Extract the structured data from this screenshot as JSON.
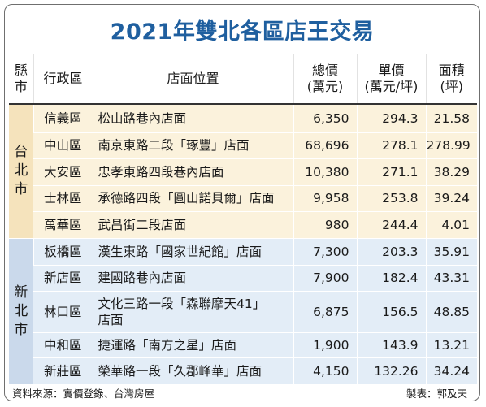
{
  "title": "2021年雙北各區店王交易",
  "headers": {
    "city": "縣市",
    "district": "行政區",
    "location": "店面位置",
    "total": "總價",
    "total_unit": "(萬元)",
    "unit_price": "單價",
    "unit_price_unit": "(萬元/坪)",
    "area": "面積",
    "area_unit": "(坪)"
  },
  "groups": [
    {
      "city": "台北市"
    },
    {
      "city": "新北市"
    }
  ],
  "rows": [
    {
      "district": "信義區",
      "location": "松山路巷內店面",
      "total": "6,350",
      "unit_price": "294.3",
      "area": "21.58"
    },
    {
      "district": "中山區",
      "location": "南京東路二段「琢豐」店面",
      "total": "68,696",
      "unit_price": "278.1",
      "area": "278.99"
    },
    {
      "district": "大安區",
      "location": "忠孝東路四段巷內店面",
      "total": "10,380",
      "unit_price": "271.1",
      "area": "38.29"
    },
    {
      "district": "士林區",
      "location": "承德路四段「圓山諾貝爾」店面",
      "total": "9,958",
      "unit_price": "253.8",
      "area": "39.24"
    },
    {
      "district": "萬華區",
      "location": "武昌街二段店面",
      "total": "980",
      "unit_price": "244.4",
      "area": "4.01"
    },
    {
      "district": "板橋區",
      "location": "漢生東路「國家世紀館」店面",
      "total": "7,300",
      "unit_price": "203.3",
      "area": "35.91"
    },
    {
      "district": "新店區",
      "location": "建國路巷內店面",
      "total": "7,900",
      "unit_price": "182.4",
      "area": "43.31"
    },
    {
      "district": "林口區",
      "location": "文化三路一段「森聯摩天41」",
      "location2": "店面",
      "total": "6,875",
      "unit_price": "156.5",
      "area": "48.85"
    },
    {
      "district": "中和區",
      "location": "捷運路「南方之星」店面",
      "total": "1,900",
      "unit_price": "143.9",
      "area": "13.21"
    },
    {
      "district": "新莊區",
      "location": "榮華路一段「久郡峰華」店面",
      "total": "4,150",
      "unit_price": "132.26",
      "area": "34.24"
    }
  ],
  "chart_data": {
    "type": "table",
    "title": "2021年雙北各區店王交易",
    "columns": [
      "縣市",
      "行政區",
      "店面位置",
      "總價(萬元)",
      "單價(萬元/坪)",
      "面積(坪)"
    ],
    "rows": [
      [
        "台北市",
        "信義區",
        "松山路巷內店面",
        6350,
        294.3,
        21.58
      ],
      [
        "台北市",
        "中山區",
        "南京東路二段「琢豐」店面",
        68696,
        278.1,
        278.99
      ],
      [
        "台北市",
        "大安區",
        "忠孝東路四段巷內店面",
        10380,
        271.1,
        38.29
      ],
      [
        "台北市",
        "士林區",
        "承德路四段「圓山諾貝爾」店面",
        9958,
        253.8,
        39.24
      ],
      [
        "台北市",
        "萬華區",
        "武昌街二段店面",
        980,
        244.4,
        4.01
      ],
      [
        "新北市",
        "板橋區",
        "漢生東路「國家世紀館」店面",
        7300,
        203.3,
        35.91
      ],
      [
        "新北市",
        "新店區",
        "建國路巷內店面",
        7900,
        182.4,
        43.31
      ],
      [
        "新北市",
        "林口區",
        "文化三路一段「森聯摩天41」店面",
        6875,
        156.5,
        48.85
      ],
      [
        "新北市",
        "中和區",
        "捷運路「南方之星」店面",
        1900,
        143.9,
        13.21
      ],
      [
        "新北市",
        "新莊區",
        "榮華路一段「久郡峰華」店面",
        4150,
        132.26,
        34.24
      ]
    ]
  },
  "footer": {
    "source": "資料來源：實價登錄、台灣房屋",
    "credit": "製表：郭及天"
  }
}
